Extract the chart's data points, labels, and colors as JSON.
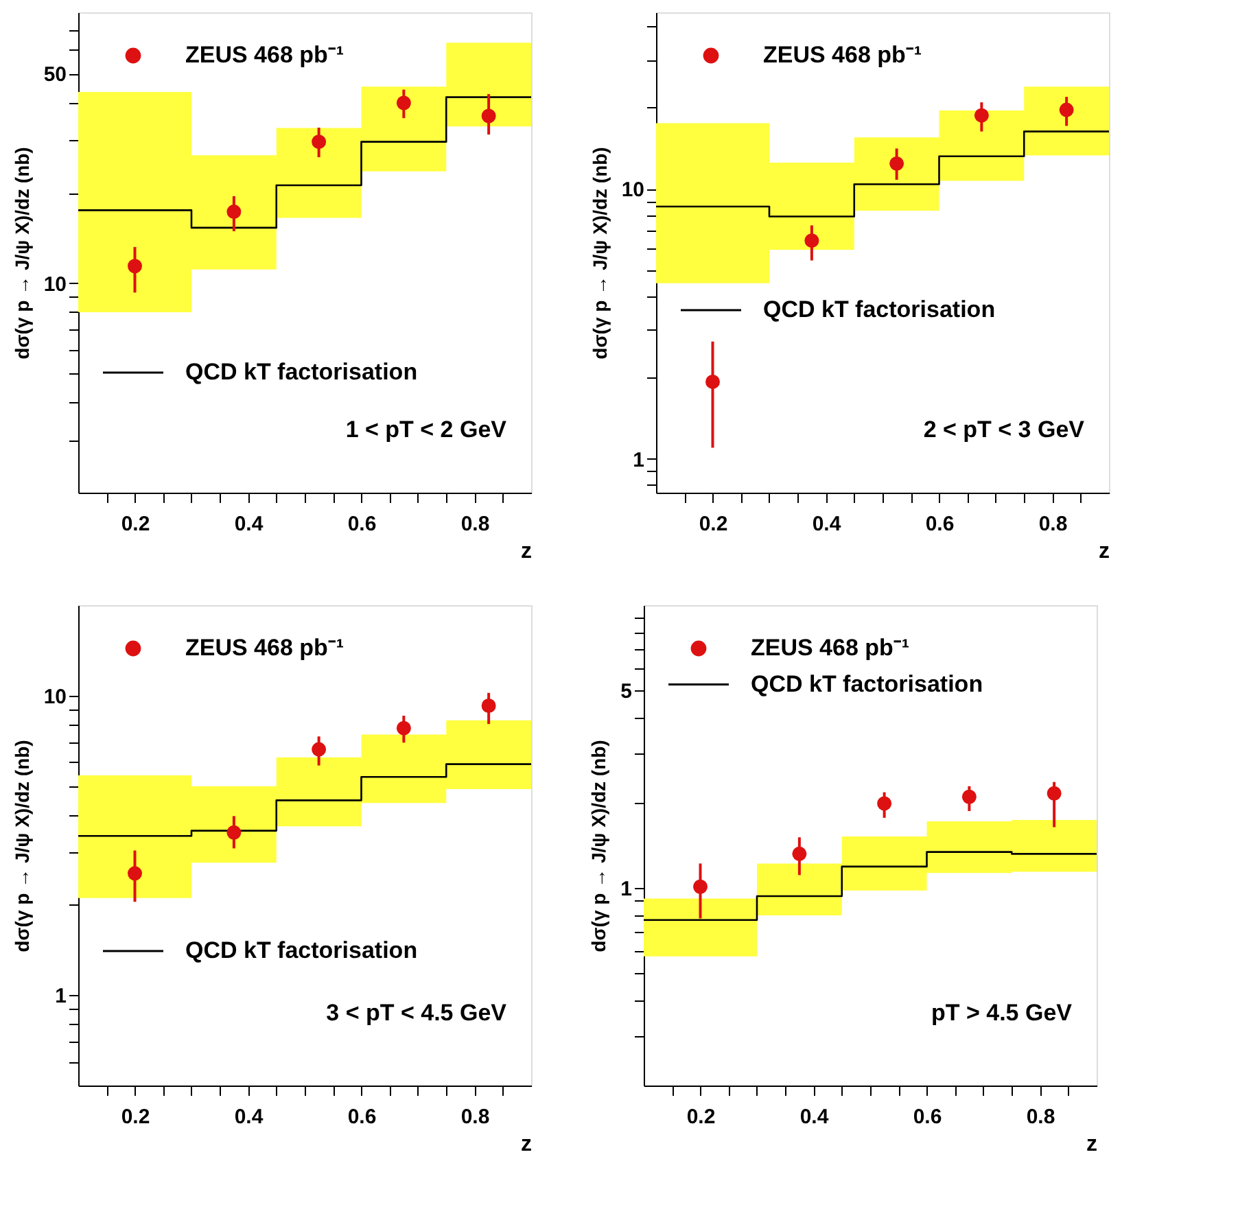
{
  "chart_data": [
    {
      "type": "scatter",
      "xlabel": "z",
      "ylabel": "dσ(γ p → J/ψ X)/dz (nb)",
      "log": "y",
      "grid": false,
      "legend": "top left",
      "xlim": [
        0.1,
        0.9
      ],
      "xticks": [
        {
          "value": 0.15,
          "label": null
        },
        0.2,
        {
          "value": 0.25,
          "label": null
        },
        {
          "value": 0.3,
          "label": null
        },
        {
          "value": 0.35,
          "label": null
        },
        0.4,
        {
          "value": 0.45,
          "label": null
        },
        {
          "value": 0.5,
          "label": null
        },
        {
          "value": 0.55,
          "label": null
        },
        0.6,
        {
          "value": 0.65,
          "label": null
        },
        {
          "value": 0.7,
          "label": null
        },
        {
          "value": 0.75,
          "label": null
        },
        0.8,
        {
          "value": 0.85,
          "label": null
        }
      ],
      "ylim": [
        2,
        80
      ],
      "yticks": [
        {
          "value": 3,
          "label": null
        },
        {
          "value": 4,
          "label": null
        },
        {
          "value": 5,
          "label": null
        },
        {
          "value": 6,
          "label": null
        },
        {
          "value": 7,
          "label": null
        },
        {
          "value": 8,
          "label": null
        },
        {
          "value": 9,
          "label": null
        },
        10,
        {
          "value": 20,
          "label": null
        },
        {
          "value": 30,
          "label": null
        },
        {
          "value": 40,
          "label": null
        },
        50,
        {
          "value": 60,
          "label": null
        },
        {
          "value": 70,
          "label": null
        }
      ],
      "annotations": [
        "1 < pT < 2 GeV"
      ],
      "series": [
        {
          "type": "scatter",
          "marker": "circle",
          "name": "ZEUS 468 pb⁻¹",
          "color": "#dd1111",
          "x": [
            0.2,
            0.375,
            0.525,
            0.675,
            0.825
          ],
          "values": [
            11.4,
            17.3,
            29.6,
            39.9,
            36.1
          ],
          "errors": [
            [
              9.3,
              13.2
            ],
            [
              14.9,
              19.5
            ],
            [
              26.3,
              33.0
            ],
            [
              35.5,
              44.2
            ],
            [
              31.3,
              42.7
            ]
          ]
        },
        {
          "type": "step",
          "name": "QCD kT factorisation",
          "color": "#000000",
          "x": [
            0.1,
            0.3,
            0.45,
            0.6,
            0.75,
            0.9
          ],
          "values": [
            17.5,
            15.3,
            21.2,
            29.6,
            41.7,
            41.7
          ],
          "lower": [
            8.0,
            11.1,
            16.5,
            23.6,
            33.3,
            33.3
          ],
          "upper": [
            43.4,
            26.7,
            32.9,
            45.2,
            63.4,
            63.4
          ]
        }
      ]
    },
    {
      "type": "scatter",
      "xlabel": "z",
      "ylabel": "dσ(γ p → J/ψ X)/dz (nb)",
      "log": "y",
      "grid": false,
      "legend": "top left",
      "xlim": [
        0.1,
        0.9
      ],
      "xticks": [
        {
          "value": 0.15,
          "label": null
        },
        0.2,
        {
          "value": 0.25,
          "label": null
        },
        {
          "value": 0.3,
          "label": null
        },
        {
          "value": 0.35,
          "label": null
        },
        0.4,
        {
          "value": 0.45,
          "label": null
        },
        {
          "value": 0.5,
          "label": null
        },
        {
          "value": 0.55,
          "label": null
        },
        0.6,
        {
          "value": 0.65,
          "label": null
        },
        {
          "value": 0.7,
          "label": null
        },
        {
          "value": 0.75,
          "label": null
        },
        0.8,
        {
          "value": 0.85,
          "label": null
        }
      ],
      "ylim": [
        0.75,
        45
      ],
      "yticks": [
        {
          "value": 0.8,
          "label": null
        },
        {
          "value": 0.9,
          "label": null
        },
        1,
        {
          "value": 2,
          "label": null
        },
        {
          "value": 3,
          "label": null
        },
        {
          "value": 4,
          "label": null
        },
        {
          "value": 5,
          "label": null
        },
        {
          "value": 6,
          "label": null
        },
        {
          "value": 7,
          "label": null
        },
        {
          "value": 8,
          "label": null
        },
        {
          "value": 9,
          "label": null
        },
        10,
        {
          "value": 20,
          "label": null
        },
        {
          "value": 30,
          "label": null
        },
        {
          "value": 40,
          "label": null
        }
      ],
      "annotations": [
        "2 < pT < 3 GeV"
      ],
      "series": [
        {
          "type": "scatter",
          "marker": "circle",
          "name": "ZEUS 468 pb⁻¹",
          "color": "#dd1111",
          "x": [
            0.2,
            0.375,
            0.525,
            0.675,
            0.825
          ],
          "values": [
            1.93,
            6.43,
            12.4,
            18.7,
            19.6
          ],
          "errors": [
            [
              1.1,
              2.72
            ],
            [
              5.43,
              7.32
            ],
            [
              10.8,
              14.1
            ],
            [
              16.3,
              20.9
            ],
            [
              17.1,
              21.9
            ]
          ]
        },
        {
          "type": "step",
          "name": "QCD kT factorisation",
          "color": "#000000",
          "x": [
            0.1,
            0.3,
            0.45,
            0.6,
            0.75,
            0.9
          ],
          "values": [
            8.6,
            7.9,
            10.4,
            13.2,
            16.3,
            16.3
          ],
          "lower": [
            4.47,
            5.95,
            8.3,
            10.7,
            13.3,
            13.3
          ],
          "upper": [
            17.5,
            12.5,
            15.5,
            19.5,
            23.9,
            23.9
          ]
        }
      ]
    },
    {
      "type": "scatter",
      "xlabel": "z",
      "ylabel": "dσ(γ p → J/ψ X)/dz (nb)",
      "log": "y",
      "grid": false,
      "legend": "top left",
      "xlim": [
        0.1,
        0.9
      ],
      "xticks": [
        {
          "value": 0.15,
          "label": null
        },
        0.2,
        {
          "value": 0.25,
          "label": null
        },
        {
          "value": 0.3,
          "label": null
        },
        {
          "value": 0.35,
          "label": null
        },
        0.4,
        {
          "value": 0.45,
          "label": null
        },
        {
          "value": 0.5,
          "label": null
        },
        {
          "value": 0.55,
          "label": null
        },
        0.6,
        {
          "value": 0.65,
          "label": null
        },
        {
          "value": 0.7,
          "label": null
        },
        {
          "value": 0.75,
          "label": null
        },
        0.8,
        {
          "value": 0.85,
          "label": null
        }
      ],
      "ylim": [
        0.5,
        20
      ],
      "yticks": [
        {
          "value": 0.6,
          "label": null
        },
        {
          "value": 0.7,
          "label": null
        },
        {
          "value": 0.8,
          "label": null
        },
        {
          "value": 0.9,
          "label": null
        },
        1,
        {
          "value": 2,
          "label": null
        },
        {
          "value": 3,
          "label": null
        },
        {
          "value": 4,
          "label": null
        },
        {
          "value": 5,
          "label": null
        },
        {
          "value": 6,
          "label": null
        },
        {
          "value": 7,
          "label": null
        },
        {
          "value": 8,
          "label": null
        },
        {
          "value": 9,
          "label": null
        },
        10
      ],
      "annotations": [
        "3 < pT < 4.5 GeV"
      ],
      "series": [
        {
          "type": "scatter",
          "marker": "circle",
          "name": "ZEUS 468 pb⁻¹",
          "color": "#dd1111",
          "x": [
            0.2,
            0.375,
            0.525,
            0.675,
            0.825
          ],
          "values": [
            2.55,
            3.49,
            6.61,
            7.78,
            9.24
          ],
          "errors": [
            [
              2.05,
              3.04
            ],
            [
              3.09,
              3.96
            ],
            [
              5.84,
              7.3
            ],
            [
              6.96,
              8.56
            ],
            [
              8.03,
              10.2
            ]
          ]
        },
        {
          "type": "step",
          "name": "QCD kT factorisation",
          "color": "#000000",
          "x": [
            0.1,
            0.3,
            0.45,
            0.6,
            0.75,
            0.9
          ],
          "values": [
            3.4,
            3.54,
            4.47,
            5.35,
            5.9,
            5.9
          ],
          "lower": [
            2.11,
            2.77,
            3.66,
            4.38,
            4.87,
            4.87
          ],
          "upper": [
            5.41,
            4.98,
            6.22,
            7.41,
            8.26,
            8.26
          ]
        }
      ]
    },
    {
      "type": "scatter",
      "xlabel": "z",
      "ylabel": "dσ(γ p → J/ψ X)/dz (nb)",
      "log": "y",
      "grid": false,
      "legend": "top left",
      "xlim": [
        0.1,
        0.9
      ],
      "xticks": [
        {
          "value": 0.15,
          "label": null
        },
        0.2,
        {
          "value": 0.25,
          "label": null
        },
        {
          "value": 0.3,
          "label": null
        },
        {
          "value": 0.35,
          "label": null
        },
        0.4,
        {
          "value": 0.45,
          "label": null
        },
        {
          "value": 0.5,
          "label": null
        },
        {
          "value": 0.55,
          "label": null
        },
        0.6,
        {
          "value": 0.65,
          "label": null
        },
        {
          "value": 0.7,
          "label": null
        },
        {
          "value": 0.75,
          "label": null
        },
        0.8,
        {
          "value": 0.85,
          "label": null
        }
      ],
      "ylim": [
        0.2,
        10
      ],
      "yticks": [
        {
          "value": 0.3,
          "label": null
        },
        {
          "value": 0.4,
          "label": null
        },
        {
          "value": 0.5,
          "label": null
        },
        {
          "value": 0.6,
          "label": null
        },
        {
          "value": 0.7,
          "label": null
        },
        {
          "value": 0.8,
          "label": null
        },
        {
          "value": 0.9,
          "label": null
        },
        1,
        {
          "value": 2,
          "label": null
        },
        {
          "value": 3,
          "label": null
        },
        {
          "value": 4,
          "label": null
        },
        5,
        {
          "value": 6,
          "label": null
        },
        {
          "value": 7,
          "label": null
        },
        {
          "value": 8,
          "label": null
        },
        {
          "value": 9,
          "label": null
        }
      ],
      "annotations": [
        "pT > 4.5 GeV"
      ],
      "series": [
        {
          "type": "scatter",
          "marker": "circle",
          "name": "ZEUS 468 pb⁻¹",
          "color": "#dd1111",
          "x": [
            0.2,
            0.375,
            0.525,
            0.675,
            0.825
          ],
          "values": [
            1.01,
            1.32,
            1.99,
            2.1,
            2.16
          ],
          "errors": [
            [
              0.78,
              1.22
            ],
            [
              1.11,
              1.51
            ],
            [
              1.77,
              2.18
            ],
            [
              1.87,
              2.29
            ],
            [
              1.64,
              2.37
            ]
          ]
        },
        {
          "type": "step",
          "name": "QCD kT factorisation",
          "color": "#000000",
          "x": [
            0.1,
            0.3,
            0.45,
            0.6,
            0.75,
            0.9
          ],
          "values": [
            0.77,
            0.935,
            1.19,
            1.34,
            1.32,
            1.32
          ],
          "lower": [
            0.573,
            0.8,
            0.98,
            1.13,
            1.14,
            1.14
          ],
          "upper": [
            0.917,
            1.22,
            1.52,
            1.72,
            1.74,
            1.74
          ]
        }
      ]
    }
  ]
}
